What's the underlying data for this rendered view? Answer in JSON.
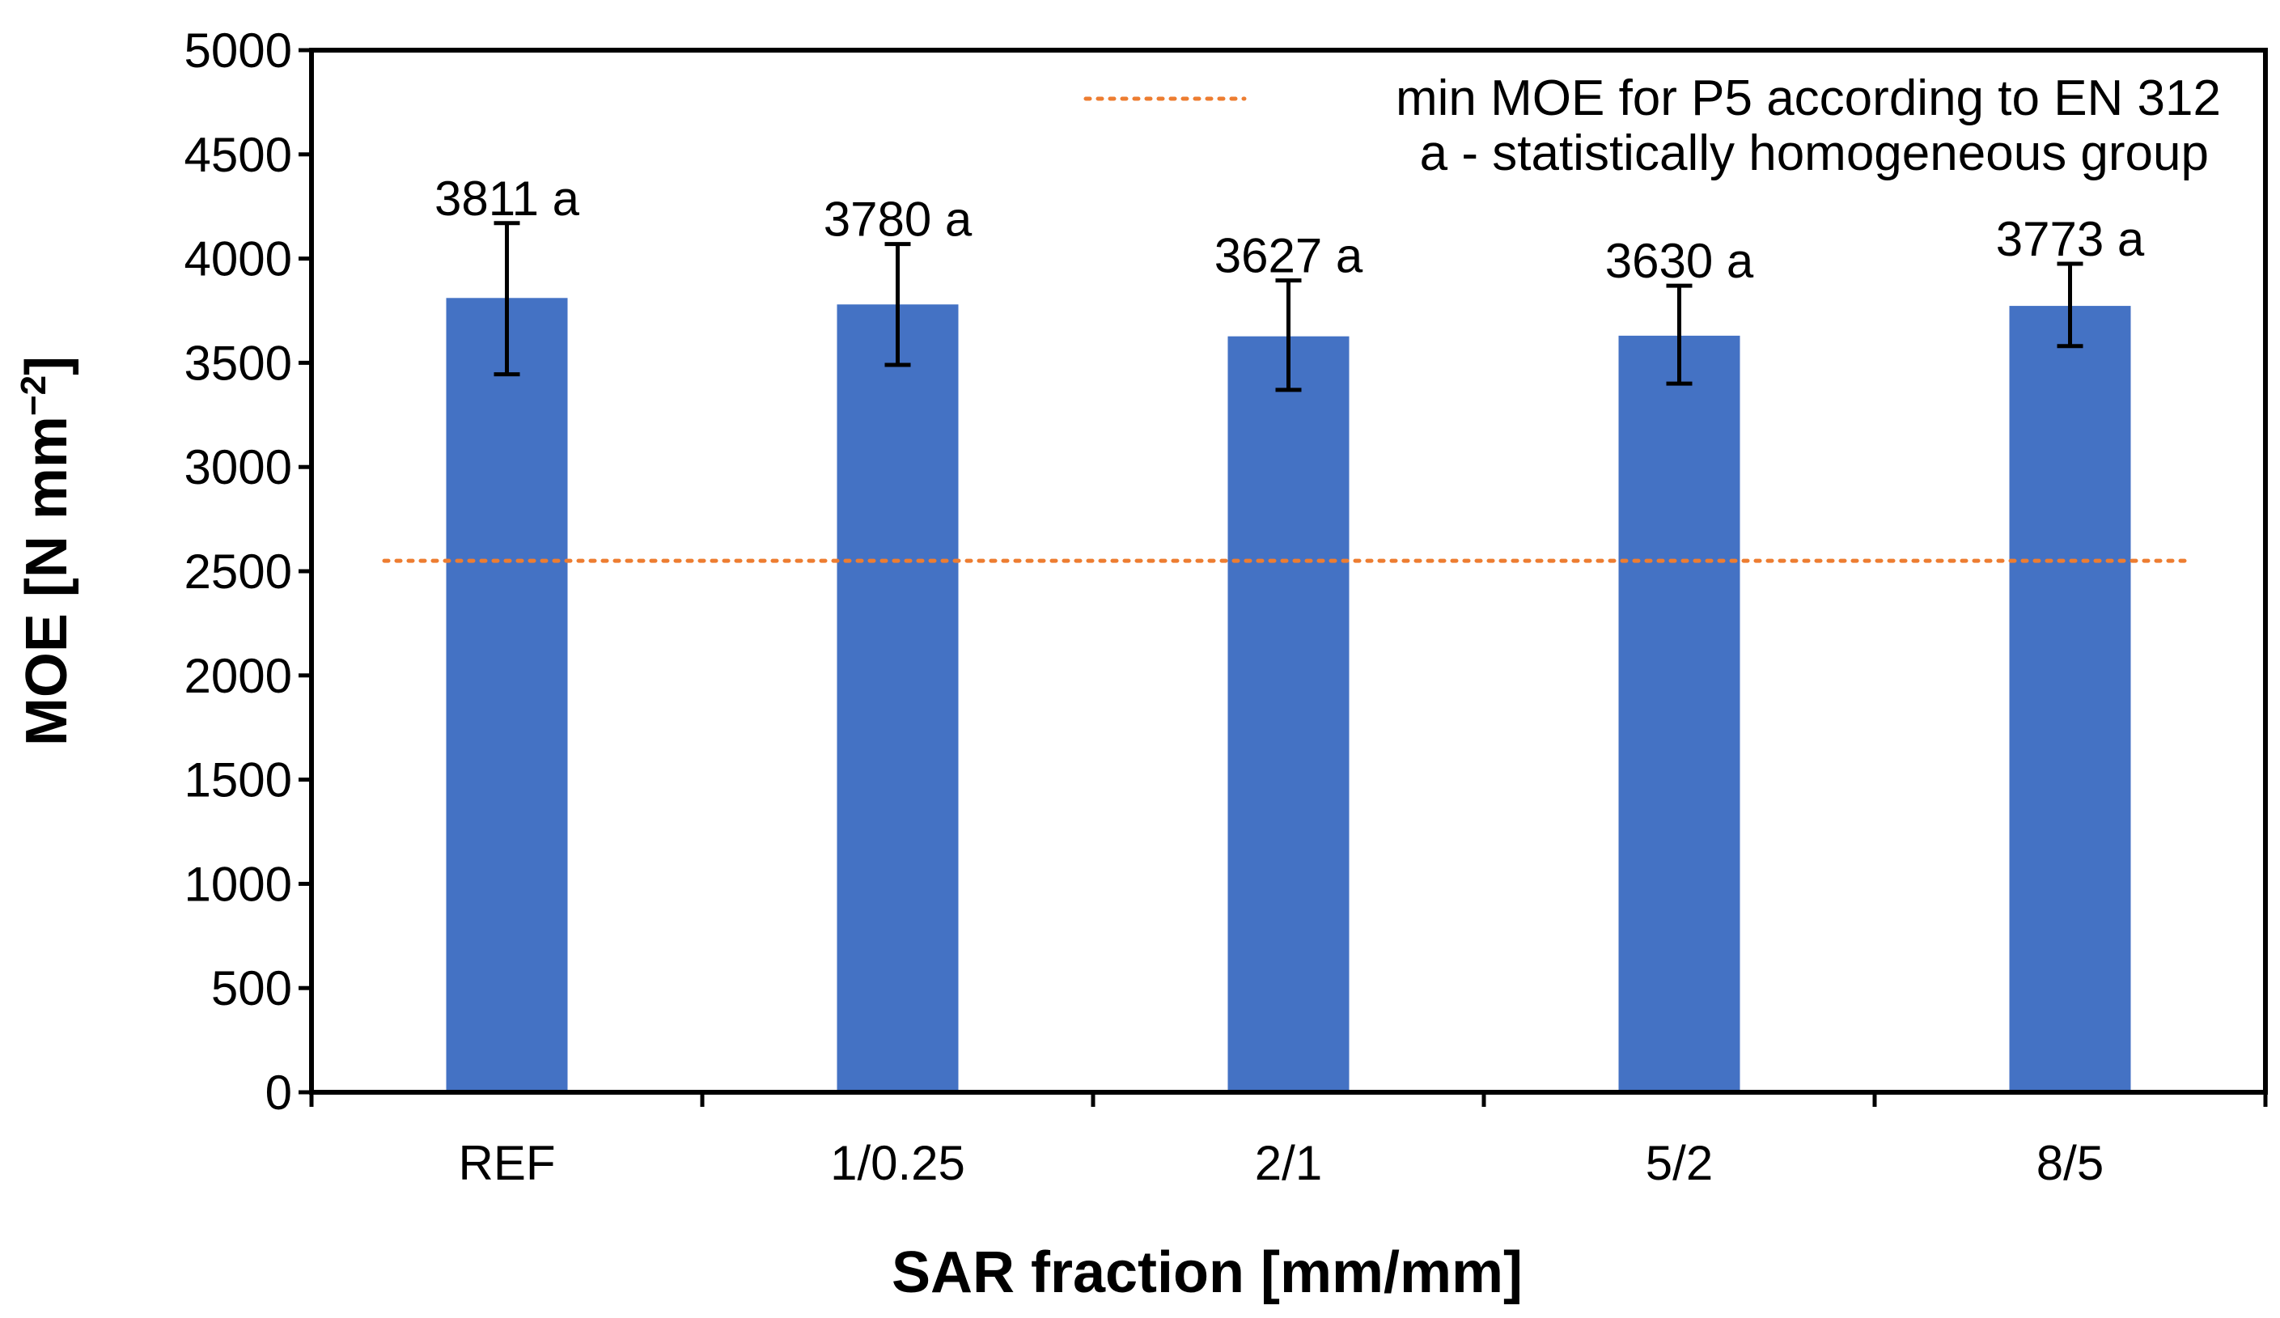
{
  "chart_data": {
    "type": "bar",
    "title": "",
    "xlabel": "SAR fraction [mm/mm]",
    "ylabel_main": "MOE [N mm",
    "ylabel_sup": "−2",
    "ylabel_end": "]",
    "ylim": [
      0,
      5000
    ],
    "yticks": [
      0,
      500,
      1000,
      1500,
      2000,
      2500,
      3000,
      3500,
      4000,
      4500,
      5000
    ],
    "categories": [
      "REF",
      "1/0.25",
      "2/1",
      "5/2",
      "8/5"
    ],
    "series": [
      {
        "name": "MOE",
        "color": "#4472c4",
        "values": [
          3811,
          3780,
          3627,
          3630,
          3773
        ],
        "error_low": [
          3445,
          3490,
          3370,
          3400,
          3580
        ],
        "error_high": [
          4170,
          4070,
          3895,
          3870,
          3975
        ],
        "labels": [
          "3811 a",
          "3780 a",
          "3627 a",
          "3630 a",
          "3773 a"
        ]
      }
    ],
    "reference_line": {
      "value": 2550,
      "label": "min MOE for P5 according to EN 312",
      "color": "#ed7d31",
      "style": "dotted"
    },
    "annotation": "a - statistically homogeneous group",
    "grid": false,
    "legend_position": "top-right"
  }
}
